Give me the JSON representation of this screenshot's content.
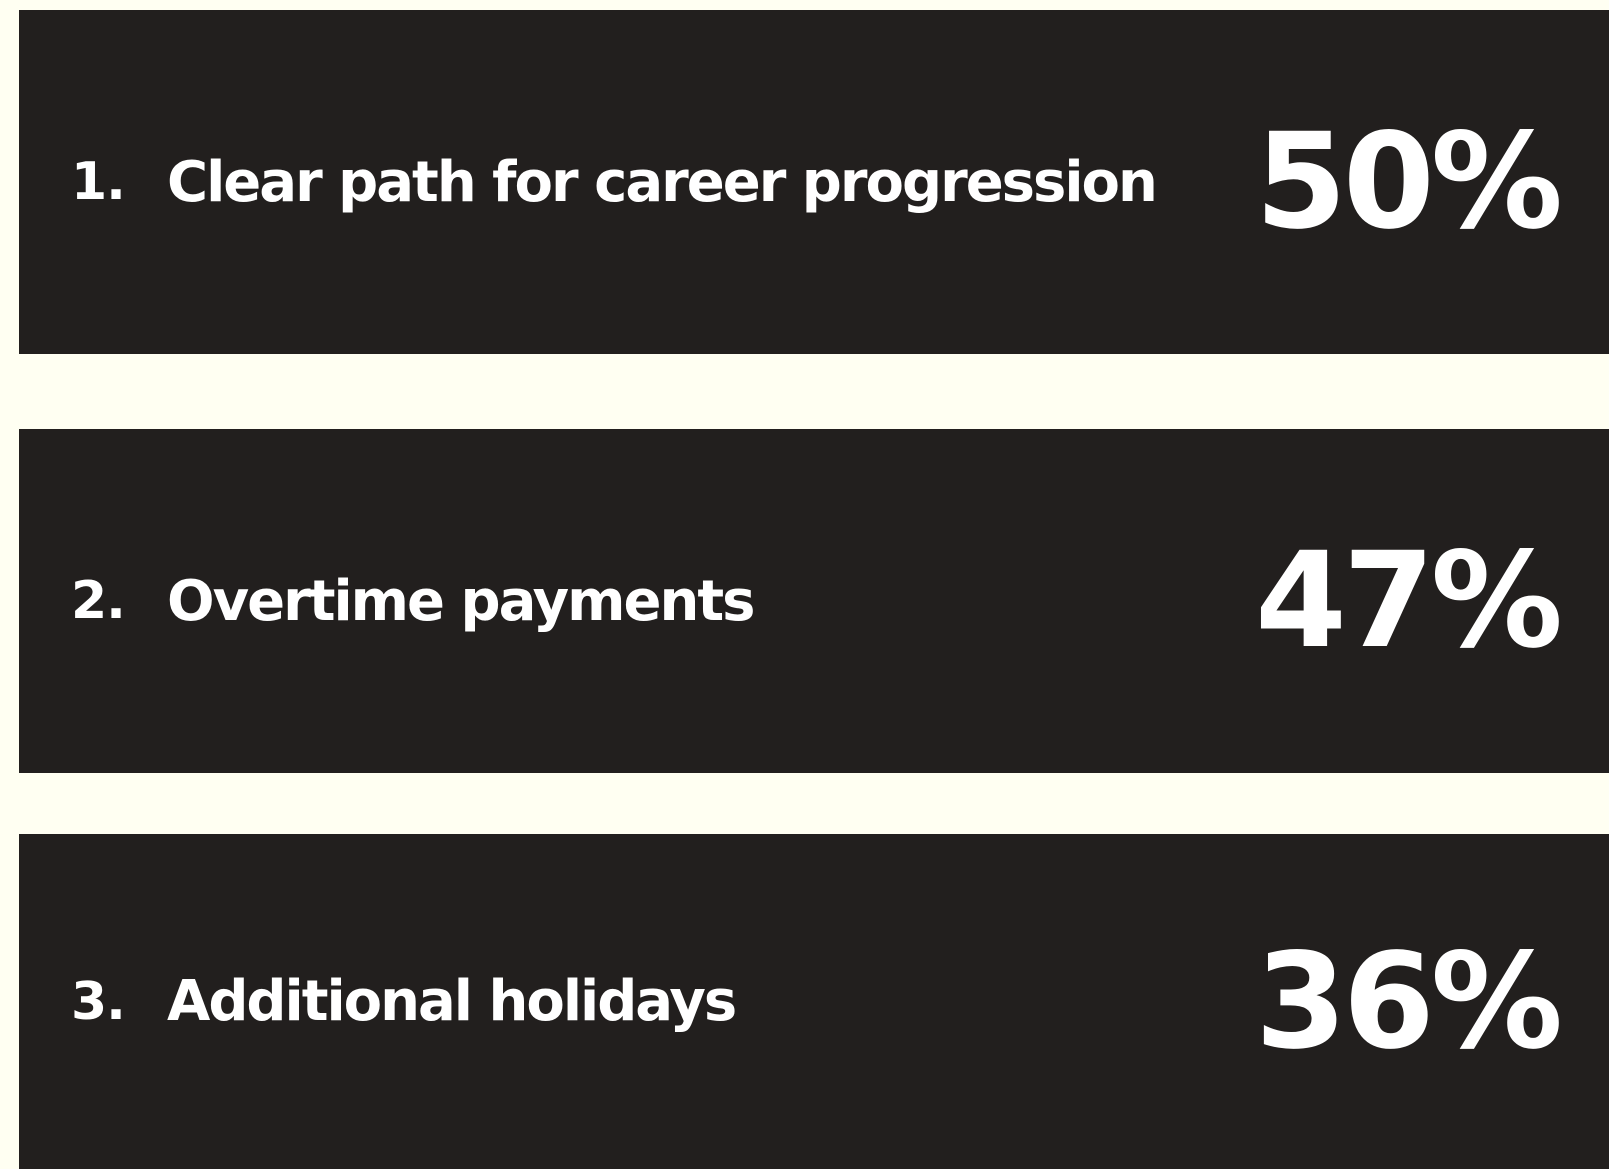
{
  "items": [
    {
      "rank": "1.",
      "label": "Clear path for career progression",
      "value": "50%"
    },
    {
      "rank": "2.",
      "label": "Overtime payments",
      "value": "47%"
    },
    {
      "rank": "3.",
      "label": "Additional holidays",
      "value": "36%"
    }
  ]
}
